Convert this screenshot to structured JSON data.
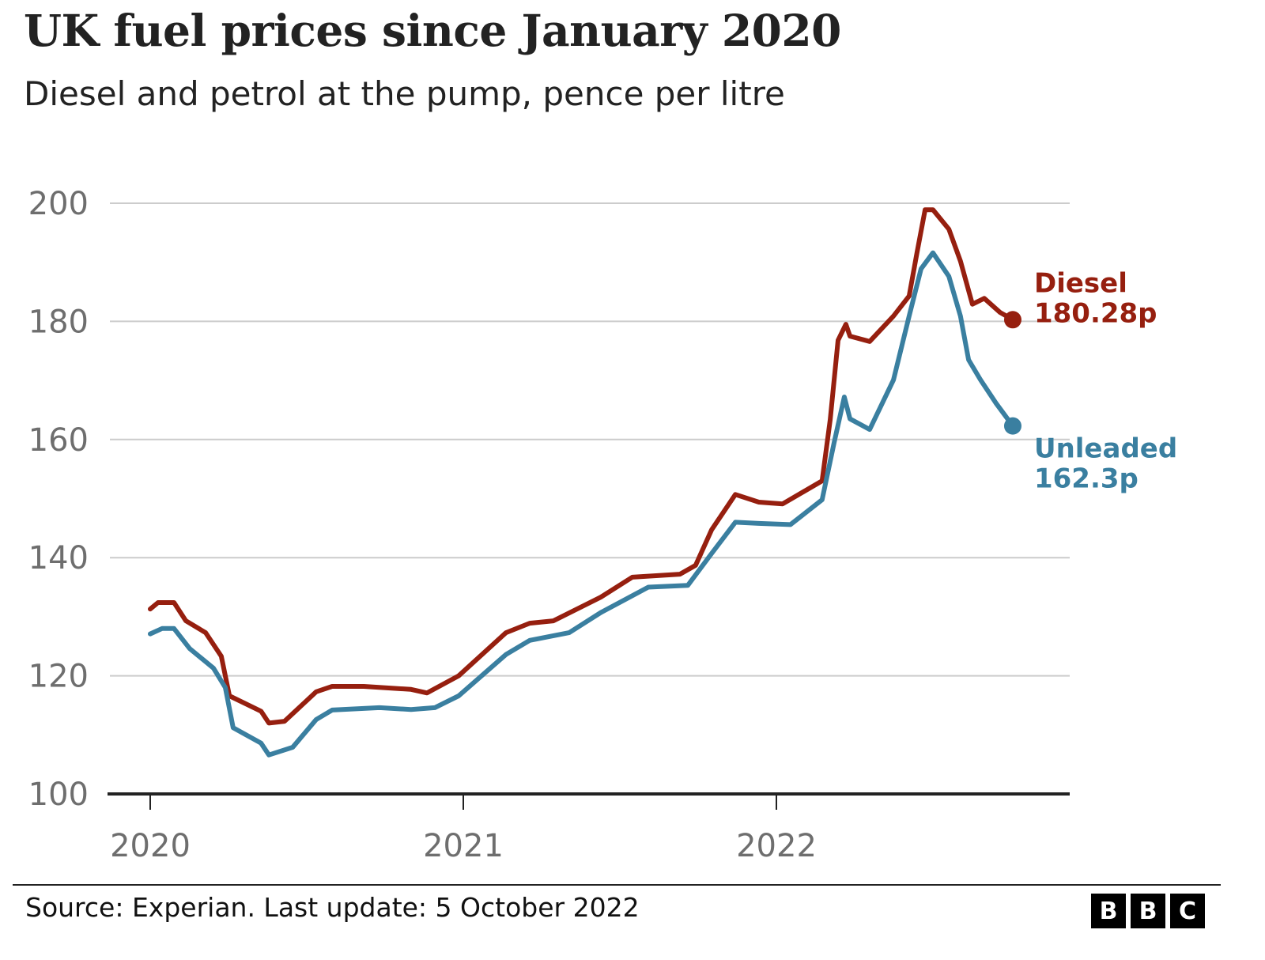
{
  "header": {
    "title": "UK fuel prices since January 2020",
    "subtitle": "Diesel and petrol at the pump, pence per litre"
  },
  "footer": {
    "source": "Source: Experian. Last update: 5 October 2022",
    "logo_letters": [
      "B",
      "B",
      "C"
    ]
  },
  "chart_data": {
    "type": "line",
    "title": "UK fuel prices since January 2020",
    "subtitle": "Diesel and petrol at the pump, pence per litre",
    "xlabel": "",
    "ylabel": "pence per litre",
    "ylim": [
      100,
      200
    ],
    "xlim": [
      2019.87,
      2020.0
    ],
    "x_domain": [
      2019.864,
      2022.94
    ],
    "yticks": [
      100,
      120,
      140,
      160,
      180,
      200
    ],
    "ytick_labels": [
      "100",
      "120",
      "140",
      "160",
      "180",
      "200"
    ],
    "xticks": [
      2020,
      2021,
      2022
    ],
    "xtick_labels": [
      "2020",
      "2021",
      "2022"
    ],
    "grid": true,
    "legend": "direct-labels-right",
    "series": [
      {
        "name": "Diesel",
        "color": "#961f0f",
        "end_label": "Diesel",
        "end_value_label": "180.28p",
        "end_value": 180.28,
        "points": [
          [
            2020.0,
            131.3
          ],
          [
            2020.025,
            132.4
          ],
          [
            2020.076,
            132.4
          ],
          [
            2020.114,
            129.3
          ],
          [
            2020.177,
            127.3
          ],
          [
            2020.227,
            123.3
          ],
          [
            2020.253,
            116.6
          ],
          [
            2020.354,
            114.0
          ],
          [
            2020.379,
            112.0
          ],
          [
            2020.429,
            112.3
          ],
          [
            2020.53,
            117.3
          ],
          [
            2020.581,
            118.2
          ],
          [
            2020.682,
            118.2
          ],
          [
            2020.833,
            117.7
          ],
          [
            2020.884,
            117.1
          ],
          [
            2020.985,
            120.0
          ],
          [
            2021.136,
            127.3
          ],
          [
            2021.212,
            128.9
          ],
          [
            2021.288,
            129.3
          ],
          [
            2021.439,
            133.3
          ],
          [
            2021.54,
            136.7
          ],
          [
            2021.692,
            137.2
          ],
          [
            2021.742,
            138.7
          ],
          [
            2021.793,
            144.7
          ],
          [
            2021.869,
            150.7
          ],
          [
            2021.944,
            149.4
          ],
          [
            2022.02,
            149.1
          ],
          [
            2022.146,
            153.0
          ],
          [
            2022.172,
            163.4
          ],
          [
            2022.197,
            176.8
          ],
          [
            2022.222,
            179.5
          ],
          [
            2022.235,
            177.5
          ],
          [
            2022.298,
            176.6
          ],
          [
            2022.374,
            180.9
          ],
          [
            2022.424,
            184.3
          ],
          [
            2022.449,
            191.6
          ],
          [
            2022.475,
            198.9
          ],
          [
            2022.5,
            198.9
          ],
          [
            2022.551,
            195.6
          ],
          [
            2022.588,
            190.2
          ],
          [
            2022.626,
            182.9
          ],
          [
            2022.664,
            183.9
          ],
          [
            2022.715,
            181.5
          ],
          [
            2022.755,
            180.28
          ]
        ]
      },
      {
        "name": "Unleaded",
        "color": "#3a7fa0",
        "end_label": "Unleaded",
        "end_value_label": "162.3p",
        "end_value": 162.3,
        "points": [
          [
            2020.0,
            127.1
          ],
          [
            2020.038,
            128.0
          ],
          [
            2020.076,
            128.0
          ],
          [
            2020.126,
            124.6
          ],
          [
            2020.202,
            121.3
          ],
          [
            2020.24,
            118.0
          ],
          [
            2020.265,
            111.2
          ],
          [
            2020.354,
            108.6
          ],
          [
            2020.379,
            106.6
          ],
          [
            2020.455,
            107.9
          ],
          [
            2020.53,
            112.6
          ],
          [
            2020.581,
            114.2
          ],
          [
            2020.732,
            114.6
          ],
          [
            2020.833,
            114.3
          ],
          [
            2020.909,
            114.6
          ],
          [
            2020.985,
            116.6
          ],
          [
            2021.136,
            123.6
          ],
          [
            2021.212,
            126.0
          ],
          [
            2021.338,
            127.3
          ],
          [
            2021.439,
            130.7
          ],
          [
            2021.591,
            135.0
          ],
          [
            2021.717,
            135.3
          ],
          [
            2021.793,
            140.7
          ],
          [
            2021.869,
            146.0
          ],
          [
            2021.944,
            145.8
          ],
          [
            2022.045,
            145.6
          ],
          [
            2022.146,
            149.8
          ],
          [
            2022.184,
            159.4
          ],
          [
            2022.217,
            167.2
          ],
          [
            2022.235,
            163.5
          ],
          [
            2022.298,
            161.7
          ],
          [
            2022.374,
            170.1
          ],
          [
            2022.424,
            180.9
          ],
          [
            2022.462,
            188.9
          ],
          [
            2022.5,
            191.6
          ],
          [
            2022.551,
            187.6
          ],
          [
            2022.588,
            180.9
          ],
          [
            2022.614,
            173.5
          ],
          [
            2022.652,
            170.1
          ],
          [
            2022.702,
            166.1
          ],
          [
            2022.755,
            162.3
          ]
        ]
      }
    ]
  }
}
